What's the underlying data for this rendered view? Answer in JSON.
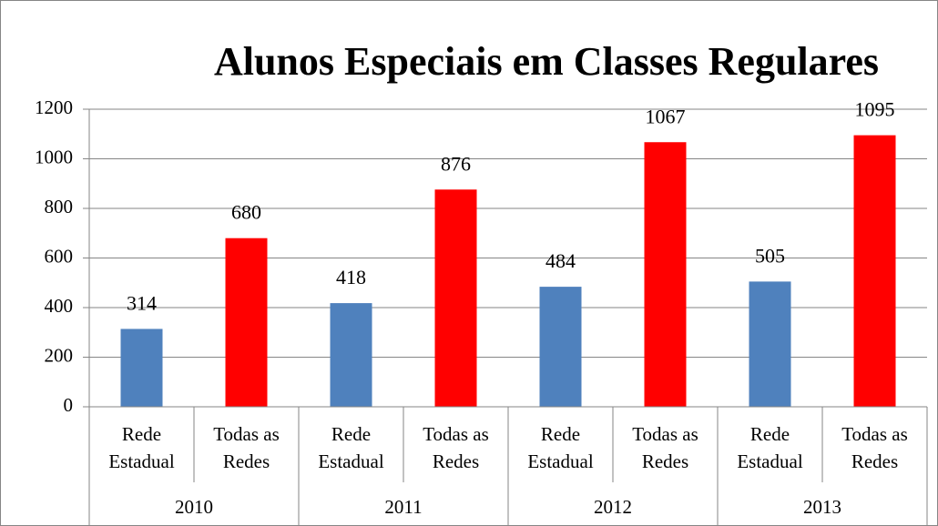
{
  "chart_data": {
    "type": "bar",
    "title": "Alunos Especiais em Classes Regulares",
    "categories": [
      "2010",
      "2011",
      "2012",
      "2013"
    ],
    "series": [
      {
        "name": "Rede Estadual",
        "color": "#4f81bd",
        "values": [
          314,
          418,
          484,
          505
        ]
      },
      {
        "name": "Todas as Redes",
        "color": "#ff0000",
        "values": [
          680,
          876,
          1067,
          1095
        ]
      }
    ],
    "ylim": [
      0,
      1200
    ],
    "yticks": [
      0,
      200,
      400,
      600,
      800,
      1000,
      1200
    ],
    "grid": true
  }
}
